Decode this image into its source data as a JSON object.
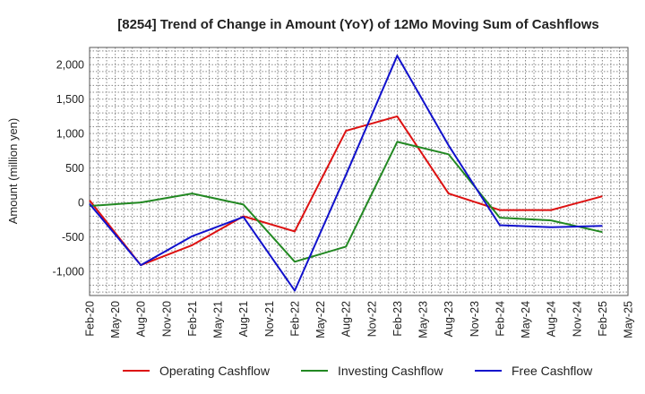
{
  "chart_data": {
    "type": "line",
    "title": "[8254]  Trend of Change in Amount (YoY) of 12Mo Moving Sum of Cashflows",
    "xlabel": "",
    "ylabel": "Amount (million yen)",
    "ylim": [
      -1350,
      2250
    ],
    "yticks": [
      2000,
      1500,
      1000,
      500,
      0,
      -500,
      -1000
    ],
    "ytick_labels": [
      "2,000",
      "1,500",
      "1,000",
      "500",
      "0",
      "-500",
      "-1,000"
    ],
    "x_tick_labels": [
      "Feb-20",
      "May-20",
      "Aug-20",
      "Nov-20",
      "Feb-21",
      "May-21",
      "Aug-21",
      "Nov-21",
      "Feb-22",
      "May-22",
      "Aug-22",
      "Nov-22",
      "Feb-23",
      "May-23",
      "Aug-23",
      "Nov-23",
      "Feb-24",
      "May-24",
      "Aug-24",
      "Nov-24",
      "Feb-25",
      "May-25"
    ],
    "grid": true,
    "legend_position": "bottom",
    "series": [
      {
        "name": "Operating Cashflow",
        "color": "#dd1111",
        "points": [
          {
            "x": "Feb-20",
            "y": 30
          },
          {
            "x": "Aug-20",
            "y": -910
          },
          {
            "x": "Feb-21",
            "y": -620
          },
          {
            "x": "Aug-21",
            "y": -200
          },
          {
            "x": "Feb-22",
            "y": -420
          },
          {
            "x": "Aug-22",
            "y": 1040
          },
          {
            "x": "Feb-23",
            "y": 1250
          },
          {
            "x": "Aug-23",
            "y": 130
          },
          {
            "x": "Feb-24",
            "y": -110
          },
          {
            "x": "Aug-24",
            "y": -110
          },
          {
            "x": "Feb-25",
            "y": 90
          }
        ]
      },
      {
        "name": "Investing Cashflow",
        "color": "#228822",
        "points": [
          {
            "x": "Feb-20",
            "y": -50
          },
          {
            "x": "Aug-20",
            "y": 0
          },
          {
            "x": "Feb-21",
            "y": 130
          },
          {
            "x": "Aug-21",
            "y": -30
          },
          {
            "x": "Feb-22",
            "y": -860
          },
          {
            "x": "Aug-22",
            "y": -640
          },
          {
            "x": "Feb-23",
            "y": 880
          },
          {
            "x": "Aug-23",
            "y": 700
          },
          {
            "x": "Feb-24",
            "y": -220
          },
          {
            "x": "Aug-24",
            "y": -260
          },
          {
            "x": "Feb-25",
            "y": -430
          }
        ]
      },
      {
        "name": "Free Cashflow",
        "color": "#1111cc",
        "points": [
          {
            "x": "Feb-20",
            "y": -20
          },
          {
            "x": "Aug-20",
            "y": -910
          },
          {
            "x": "Feb-21",
            "y": -490
          },
          {
            "x": "Aug-21",
            "y": -210
          },
          {
            "x": "Feb-22",
            "y": -1280
          },
          {
            "x": "Aug-22",
            "y": 400
          },
          {
            "x": "Feb-23",
            "y": 2130
          },
          {
            "x": "Aug-23",
            "y": 830
          },
          {
            "x": "Feb-24",
            "y": -330
          },
          {
            "x": "Aug-24",
            "y": -360
          },
          {
            "x": "Feb-25",
            "y": -340
          }
        ]
      }
    ]
  }
}
